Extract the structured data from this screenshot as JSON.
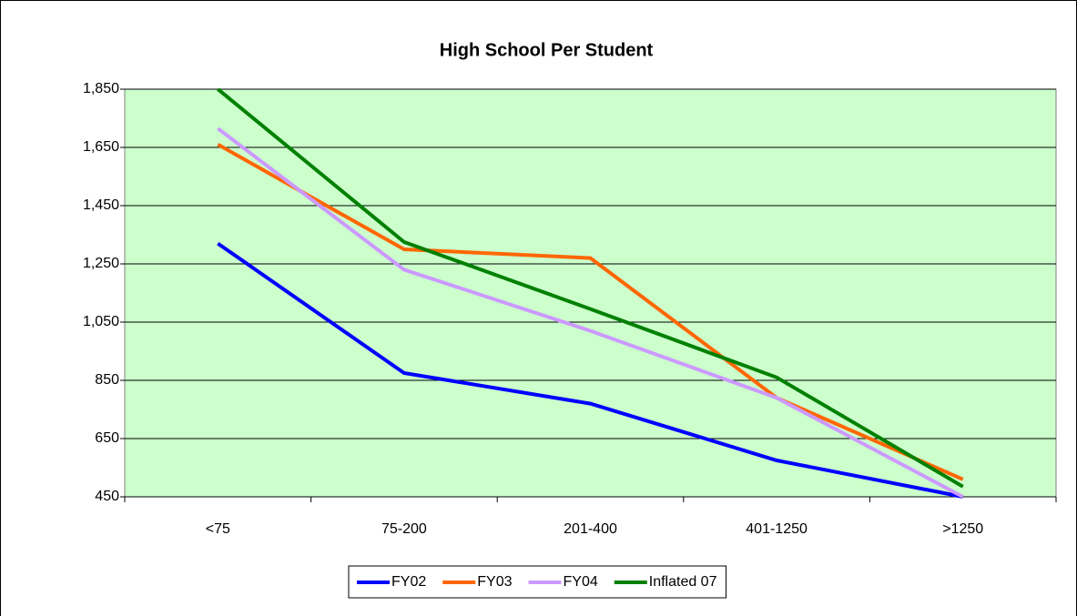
{
  "chart_data": {
    "type": "line",
    "title": "High School Per Student",
    "categories": [
      "<75",
      "75-200",
      "201-400",
      "401-1250",
      ">1250"
    ],
    "series": [
      {
        "name": "FY02",
        "color": "#0000ff",
        "values": [
          1320,
          875,
          770,
          575,
          450
        ]
      },
      {
        "name": "FY03",
        "color": "#ff6600",
        "values": [
          1660,
          1300,
          1270,
          790,
          510
        ]
      },
      {
        "name": "FY04",
        "color": "#cc99ff",
        "values": [
          1715,
          1230,
          1020,
          790,
          450
        ]
      },
      {
        "name": "Inflated 07",
        "color": "#008000",
        "values": [
          1850,
          1325,
          1095,
          860,
          485
        ]
      }
    ],
    "ylim": [
      450,
      1850
    ],
    "yticks": [
      450,
      650,
      850,
      {
        "value": 1050,
        "label": "1,050"
      },
      {
        "value": 1250,
        "label": "1,250"
      },
      {
        "value": 1450,
        "label": "1,450"
      },
      {
        "value": 1650,
        "label": "1,650"
      },
      {
        "value": 1850,
        "label": "1,850"
      }
    ],
    "grid": true,
    "plot_background": "#ccffcc",
    "legend": "bottom"
  }
}
